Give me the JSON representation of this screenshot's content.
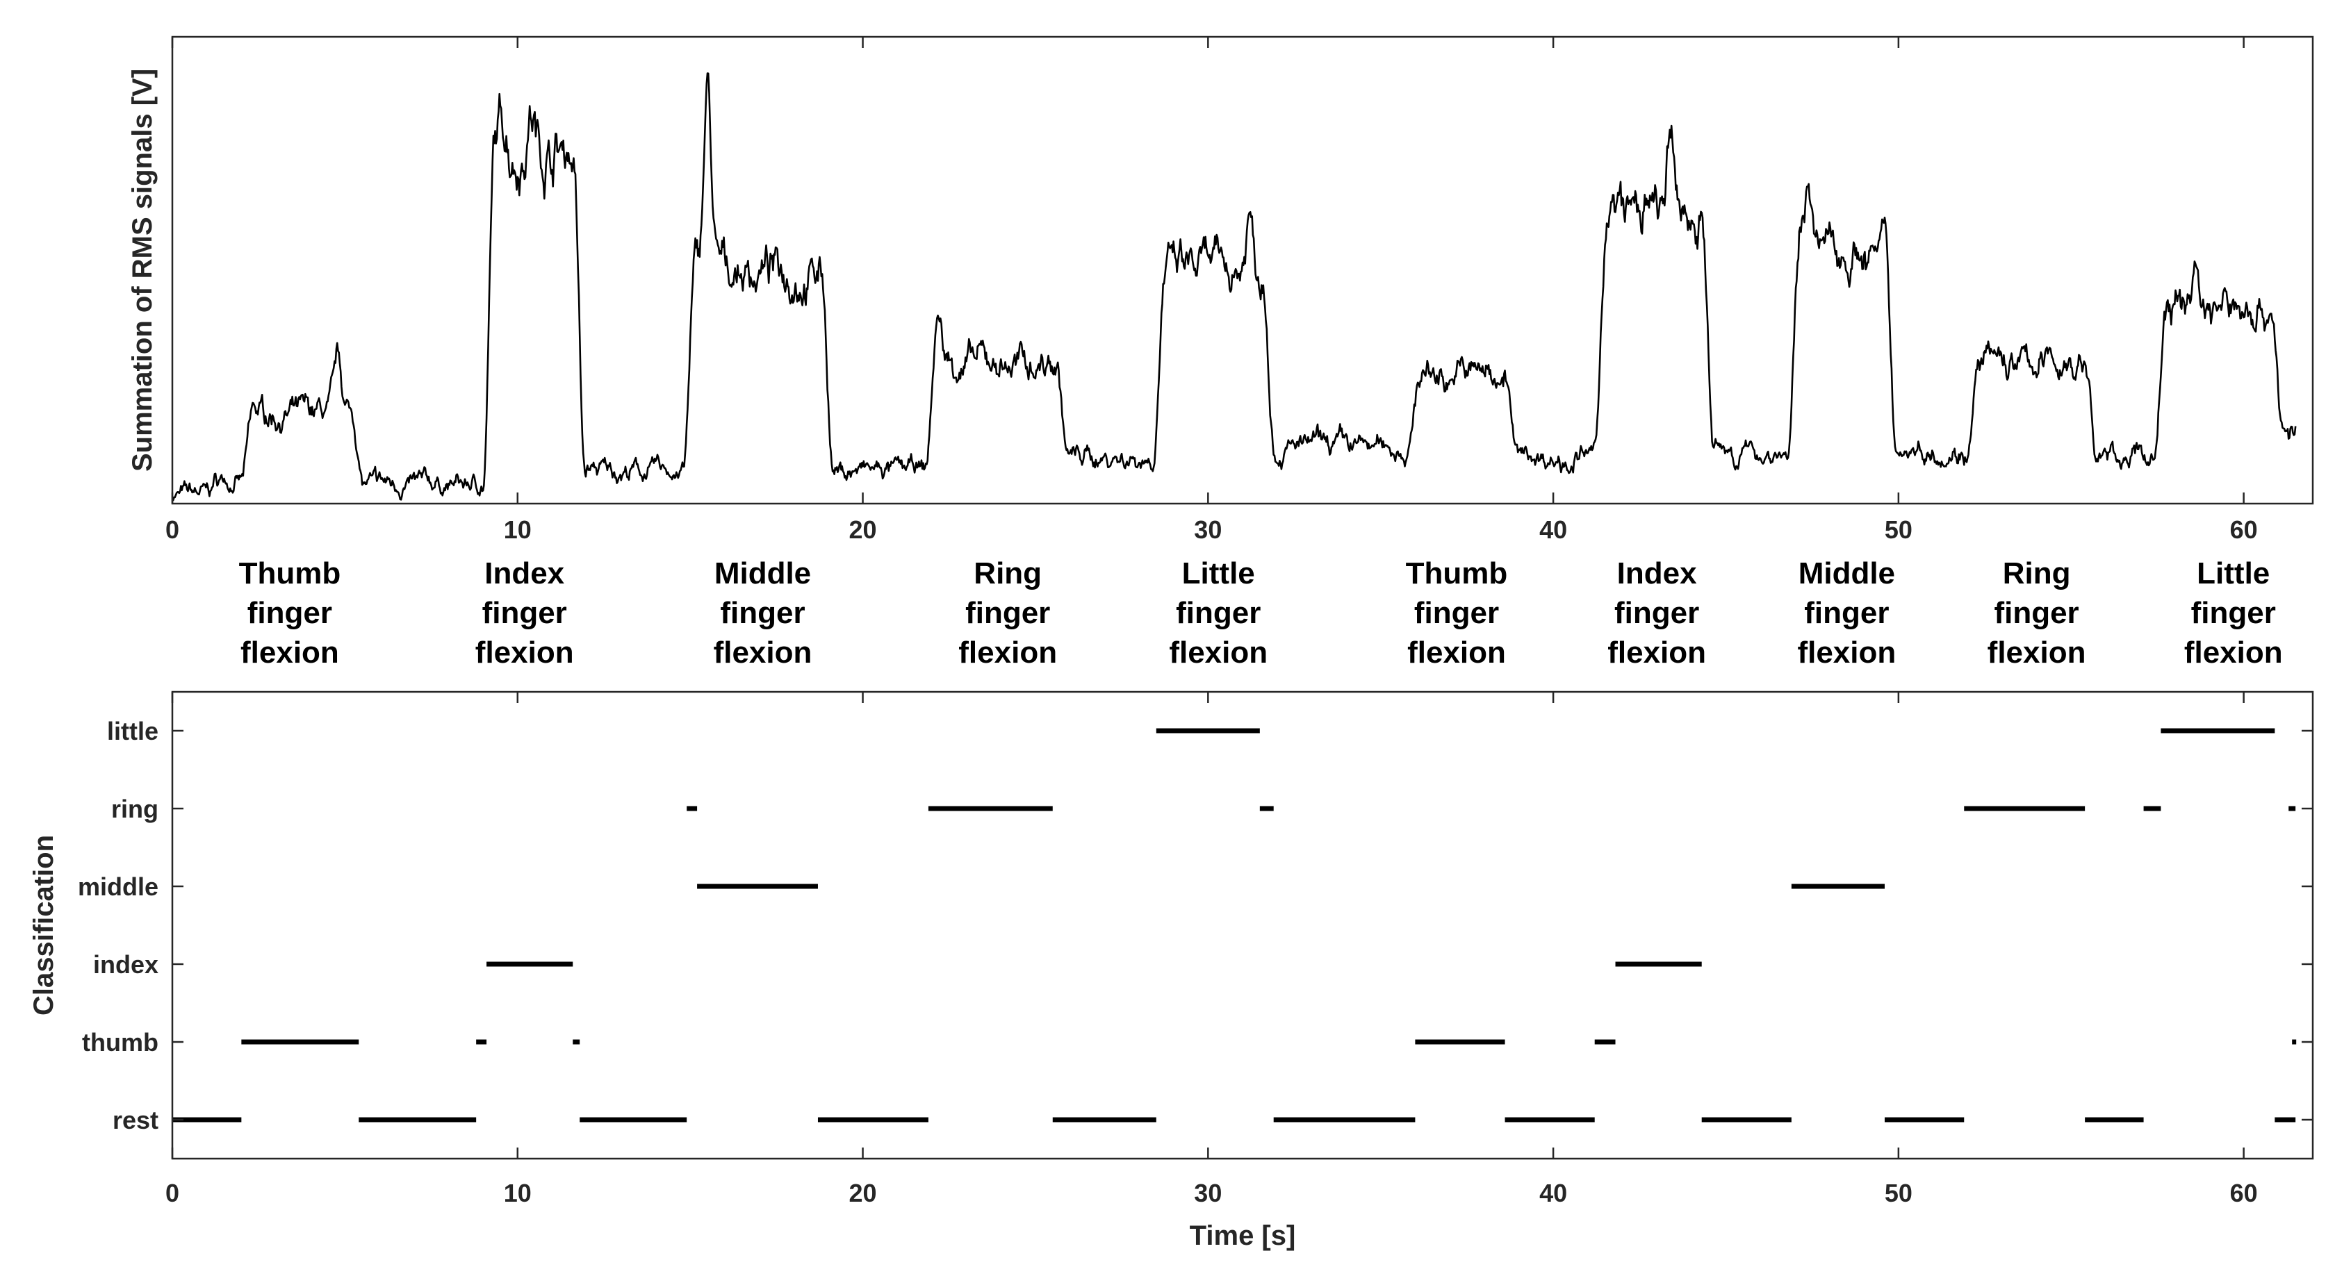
{
  "chart_data": [
    {
      "type": "line",
      "ylabel": "Summation of RMS signals [V]",
      "xlabel": "",
      "xlim": [
        0,
        62
      ],
      "ylim": [
        0,
        1
      ],
      "xticks": [
        0,
        10,
        20,
        30,
        40,
        50,
        60
      ],
      "y_tick_labels": false,
      "grid": false,
      "segments": [
        {
          "t0": 0.0,
          "t1": 1.0,
          "level": 0.02
        },
        {
          "t0": 1.0,
          "t1": 2.0,
          "level": 0.05
        },
        {
          "t0": 2.0,
          "t1": 5.2,
          "level": 0.19
        },
        {
          "t0": 5.2,
          "t1": 9.0,
          "level": 0.04
        },
        {
          "t0": 9.0,
          "t1": 11.6,
          "level": 0.76
        },
        {
          "t0": 11.6,
          "t1": 14.8,
          "level": 0.07
        },
        {
          "t0": 14.8,
          "t1": 18.8,
          "level": 0.5
        },
        {
          "t0": 18.8,
          "t1": 21.8,
          "level": 0.07
        },
        {
          "t0": 21.8,
          "t1": 25.6,
          "level": 0.3
        },
        {
          "t0": 25.6,
          "t1": 28.4,
          "level": 0.1
        },
        {
          "t0": 28.4,
          "t1": 31.6,
          "level": 0.5
        },
        {
          "t0": 31.6,
          "t1": 35.8,
          "level": 0.12
        },
        {
          "t0": 35.8,
          "t1": 38.6,
          "level": 0.28
        },
        {
          "t0": 38.6,
          "t1": 41.2,
          "level": 0.1
        },
        {
          "t0": 41.2,
          "t1": 44.3,
          "level": 0.62
        },
        {
          "t0": 44.3,
          "t1": 46.8,
          "level": 0.11
        },
        {
          "t0": 46.8,
          "t1": 49.6,
          "level": 0.54
        },
        {
          "t0": 49.6,
          "t1": 52.0,
          "level": 0.12
        },
        {
          "t0": 52.0,
          "t1": 55.4,
          "level": 0.3
        },
        {
          "t0": 55.4,
          "t1": 57.4,
          "level": 0.1
        },
        {
          "t0": 57.4,
          "t1": 60.8,
          "level": 0.42
        },
        {
          "t0": 60.8,
          "t1": 61.5,
          "level": 0.15
        }
      ],
      "peaks": [
        {
          "t": 4.8,
          "value": 0.31
        },
        {
          "t": 9.6,
          "value": 0.82
        },
        {
          "t": 10.4,
          "value": 0.86
        },
        {
          "t": 15.5,
          "value": 0.93
        },
        {
          "t": 22.2,
          "value": 0.4
        },
        {
          "t": 31.2,
          "value": 0.63
        },
        {
          "t": 43.4,
          "value": 0.76
        },
        {
          "t": 47.4,
          "value": 0.72
        },
        {
          "t": 58.6,
          "value": 0.52
        }
      ]
    },
    {
      "type": "scatter",
      "xlabel": "Time [s]",
      "ylabel": "Classification",
      "xlim": [
        0,
        62
      ],
      "xticks": [
        0,
        10,
        20,
        30,
        40,
        50,
        60
      ],
      "classes": [
        "rest",
        "thumb",
        "index",
        "middle",
        "ring",
        "little"
      ],
      "grid": false,
      "intervals": [
        {
          "class": "rest",
          "t0": 0.0,
          "t1": 2.0
        },
        {
          "class": "thumb",
          "t0": 2.0,
          "t1": 5.4
        },
        {
          "class": "rest",
          "t0": 5.4,
          "t1": 8.8
        },
        {
          "class": "thumb",
          "t0": 8.8,
          "t1": 9.1
        },
        {
          "class": "index",
          "t0": 9.1,
          "t1": 11.6
        },
        {
          "class": "thumb",
          "t0": 11.6,
          "t1": 11.8
        },
        {
          "class": "rest",
          "t0": 11.8,
          "t1": 14.9
        },
        {
          "class": "ring",
          "t0": 14.9,
          "t1": 15.2
        },
        {
          "class": "middle",
          "t0": 15.2,
          "t1": 18.7
        },
        {
          "class": "rest",
          "t0": 18.7,
          "t1": 21.9
        },
        {
          "class": "ring",
          "t0": 21.9,
          "t1": 25.5
        },
        {
          "class": "rest",
          "t0": 25.5,
          "t1": 28.5
        },
        {
          "class": "little",
          "t0": 28.5,
          "t1": 31.5
        },
        {
          "class": "ring",
          "t0": 31.5,
          "t1": 31.9
        },
        {
          "class": "rest",
          "t0": 31.9,
          "t1": 36.0
        },
        {
          "class": "thumb",
          "t0": 36.0,
          "t1": 38.6
        },
        {
          "class": "rest",
          "t0": 38.6,
          "t1": 41.2
        },
        {
          "class": "thumb",
          "t0": 41.2,
          "t1": 41.8
        },
        {
          "class": "index",
          "t0": 41.8,
          "t1": 44.3
        },
        {
          "class": "rest",
          "t0": 44.3,
          "t1": 46.9
        },
        {
          "class": "middle",
          "t0": 46.9,
          "t1": 49.6
        },
        {
          "class": "rest",
          "t0": 49.6,
          "t1": 51.9
        },
        {
          "class": "ring",
          "t0": 51.9,
          "t1": 55.4
        },
        {
          "class": "rest",
          "t0": 55.4,
          "t1": 57.1
        },
        {
          "class": "ring",
          "t0": 57.1,
          "t1": 57.6
        },
        {
          "class": "little",
          "t0": 57.6,
          "t1": 60.9
        },
        {
          "class": "rest",
          "t0": 60.9,
          "t1": 61.5
        },
        {
          "class": "ring",
          "t0": 61.3,
          "t1": 61.5
        },
        {
          "class": "thumb",
          "t0": 61.4,
          "t1": 61.5
        }
      ]
    }
  ],
  "gesture_labels": [
    {
      "t": 3.4,
      "lines": [
        "Thumb",
        "finger",
        "flexion"
      ]
    },
    {
      "t": 10.2,
      "lines": [
        "Index",
        "finger",
        "flexion"
      ]
    },
    {
      "t": 17.1,
      "lines": [
        "Middle",
        "finger",
        "flexion"
      ]
    },
    {
      "t": 24.2,
      "lines": [
        "Ring",
        "finger",
        "flexion"
      ]
    },
    {
      "t": 30.3,
      "lines": [
        "Little",
        "finger",
        "flexion"
      ]
    },
    {
      "t": 37.2,
      "lines": [
        "Thumb",
        "finger",
        "flexion"
      ]
    },
    {
      "t": 43.0,
      "lines": [
        "Index",
        "finger",
        "flexion"
      ]
    },
    {
      "t": 48.5,
      "lines": [
        "Middle",
        "finger",
        "flexion"
      ]
    },
    {
      "t": 54.0,
      "lines": [
        "Ring",
        "finger",
        "flexion"
      ]
    },
    {
      "t": 59.7,
      "lines": [
        "Little",
        "finger",
        "flexion"
      ]
    }
  ]
}
